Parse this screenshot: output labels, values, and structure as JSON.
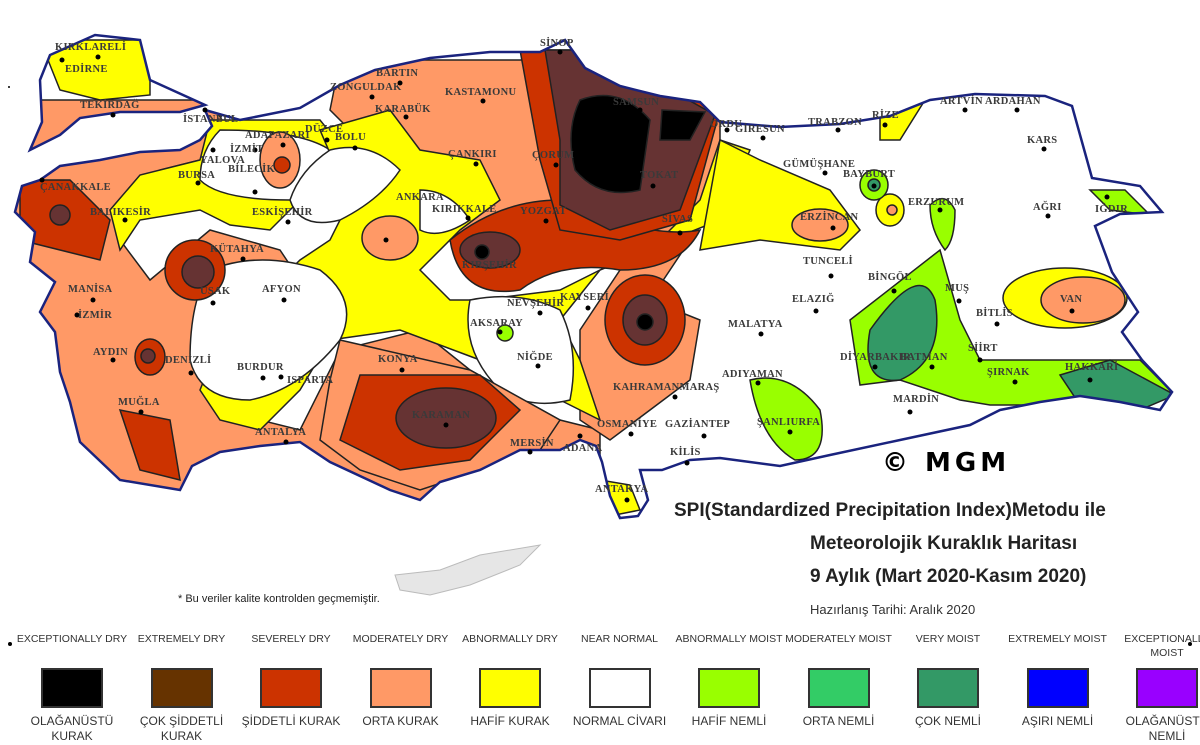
{
  "title": {
    "line1": "SPI(Standardized Precipitation Index)Metodu ile",
    "line2": "Meteorolojik Kuraklık Haritası",
    "line3": "9 Aylık (Mart 2020-Kasım 2020)",
    "prepared": "Hazırlanış Tarihi: Aralık 2020"
  },
  "copyright": "© MGM",
  "note": "* Bu veriler kalite kontrolden geçmemiştir.",
  "legend": [
    {
      "en": "EXCEPTIONALLY DRY",
      "tr": "OLAĞANÜSTÜ KURAK",
      "color": "#000000"
    },
    {
      "en": "EXTREMELY DRY",
      "tr": "ÇOK ŞİDDETLİ KURAK",
      "color": "#663300"
    },
    {
      "en": "SEVERELY DRY",
      "tr": "ŞİDDETLİ KURAK",
      "color": "#cc3300"
    },
    {
      "en": "MODERATELY DRY",
      "tr": "ORTA KURAK",
      "color": "#ff9966"
    },
    {
      "en": "ABNORMALLY DRY",
      "tr": "HAFİF KURAK",
      "color": "#ffff00"
    },
    {
      "en": "NEAR NORMAL",
      "tr": "NORMAL CİVARI",
      "color": "#ffffff"
    },
    {
      "en": "ABNORMALLY MOIST",
      "tr": "HAFİF NEMLİ",
      "color": "#99ff00"
    },
    {
      "en": "MODERATELY MOIST",
      "tr": "ORTA NEMLİ",
      "color": "#33cc66"
    },
    {
      "en": "VERY MOIST",
      "tr": "ÇOK NEMLİ",
      "color": "#339966"
    },
    {
      "en": "EXTREMELY MOIST",
      "tr": "AŞIRI NEMLİ",
      "color": "#0000ff"
    },
    {
      "en": "EXCEPTIONALLY MOIST",
      "tr": "OLAĞANÜSTÜ NEMLİ",
      "color": "#9900ff"
    }
  ],
  "cities": [
    "KIRKLARELİ",
    "EDİRNE",
    "TEKİRDAĞ",
    "İSTANBUL",
    "ADAPAZARI",
    "İZMİT",
    "YALOVA",
    "DÜZCE",
    "BOLU",
    "BURSA",
    "BİLECİK",
    "ÇANAKKALE",
    "BALIKESİR",
    "ESKİŞEHİR",
    "ZONGULDAK",
    "BARTIN",
    "KARABÜK",
    "KASTAMONU",
    "SİNOP",
    "SAMSUN",
    "ORDU",
    "GİRESUN",
    "TRABZON",
    "RİZE",
    "ARTVİN",
    "ARDAHAN",
    "KARS",
    "GÜMÜŞHANE",
    "BAYBURT",
    "ERZURUM",
    "ERZİNCAN",
    "AĞRI",
    "IĞDIR",
    "ÇANKIRI",
    "ÇORUM",
    "TOKAT",
    "ANKARA",
    "KIRIKKALE",
    "YOZGAT",
    "SİVAS",
    "KÜTAHYA",
    "UŞAK",
    "MANİSA",
    "İZMİR",
    "AFYON",
    "AYDIN",
    "DENİZLİ",
    "BURDUR",
    "ISPARTA",
    "MUĞLA",
    "ANTALYA",
    "KONYA",
    "KIRŞEHİR",
    "NEVŞEHİR",
    "KAYSERİ",
    "AKSARAY",
    "NİĞDE",
    "KARAMAN",
    "MERSİN",
    "ADANA",
    "OSMANİYE",
    "GAZİANTEP",
    "KAHRAMANMARAŞ",
    "KİLİS",
    "MALATYA",
    "ELAZIĞ",
    "TUNCELİ",
    "BİNGÖL",
    "MUŞ",
    "BİTLİS",
    "VAN",
    "ADIYAMAN",
    "ŞANLIURFA",
    "DİYARBAKIR",
    "BATMAN",
    "SİİRT",
    "ŞIRNAK",
    "HAKKARİ",
    "MARDİN",
    "ANTAKYA"
  ]
}
